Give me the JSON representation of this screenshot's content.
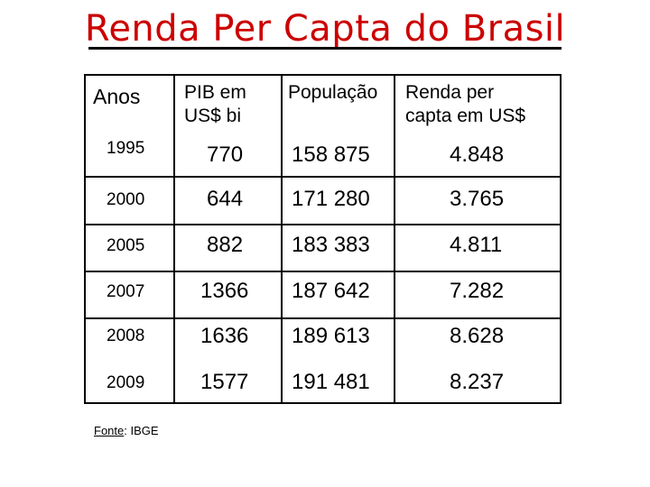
{
  "title": "Renda Per Capta do Brasil",
  "table": {
    "headers": {
      "anos": "Anos",
      "pib_line1": "PIB em",
      "pib_line2": "US$ bi",
      "populacao": "População",
      "renda_line1": "Renda per",
      "renda_line2": "capta em US$"
    },
    "rows": [
      {
        "ano": "1995",
        "pib": "770",
        "populacao": "158 875",
        "renda": "4.848"
      },
      {
        "ano": "2000",
        "pib": "644",
        "populacao": "171 280",
        "renda": "3.765"
      },
      {
        "ano": "2005",
        "pib": "882",
        "populacao": "183 383",
        "renda": "4.811"
      },
      {
        "ano": "2007",
        "pib": "1366",
        "populacao": "187 642",
        "renda": "7.282"
      },
      {
        "ano": "2008",
        "pib": "1636",
        "populacao": "189 613",
        "renda": "8.628"
      },
      {
        "ano": "2009",
        "pib": "1577",
        "populacao": "191 481",
        "renda": "8.237"
      }
    ]
  },
  "source": {
    "label": "Fonte",
    "sep": ":",
    "value": " IBGE"
  }
}
